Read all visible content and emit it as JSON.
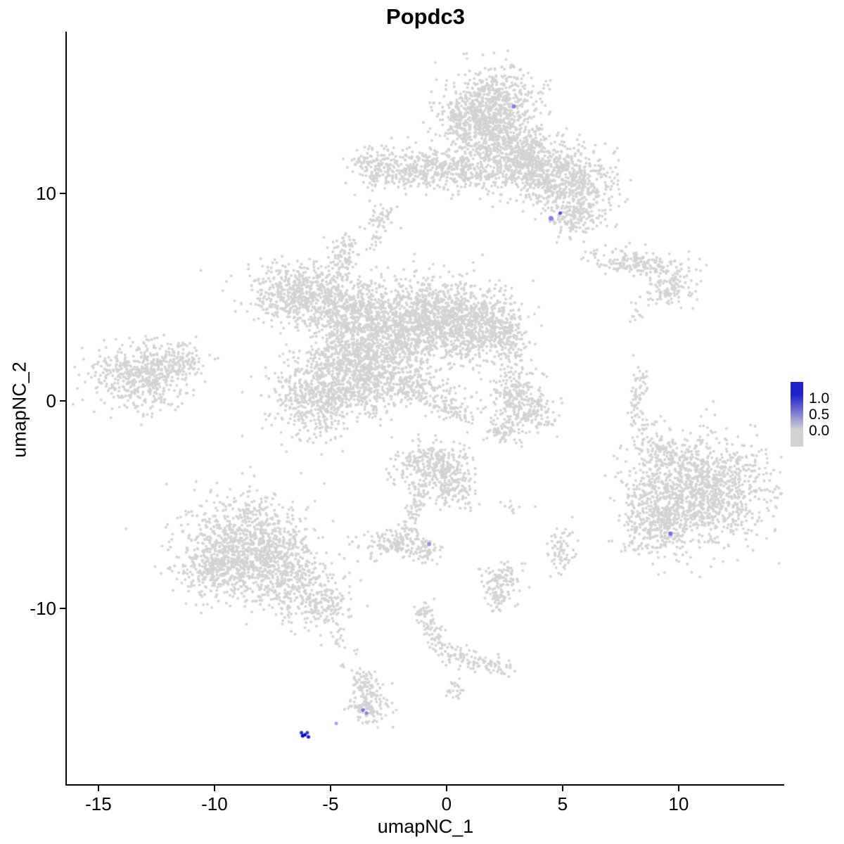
{
  "title": "Popdc3",
  "axes": {
    "x": {
      "label": "umapNC_1",
      "ticks": [
        {
          "value": -15,
          "label": "-15"
        },
        {
          "value": -10,
          "label": "-10"
        },
        {
          "value": -5,
          "label": "-5"
        },
        {
          "value": 0,
          "label": "0"
        },
        {
          "value": 5,
          "label": "5"
        },
        {
          "value": 10,
          "label": "10"
        }
      ]
    },
    "y": {
      "label": "umapNC_2",
      "ticks": [
        {
          "value": 10,
          "label": "10"
        },
        {
          "value": 0,
          "label": "0"
        },
        {
          "value": -10,
          "label": "-10"
        }
      ]
    }
  },
  "legend": {
    "labels": [
      "1.0",
      "0.5",
      "0.0"
    ],
    "color_high": "#2121CC",
    "color_low": "#D3D3D3"
  },
  "chart_data": {
    "type": "scatter",
    "title": "Popdc3",
    "xlabel": "umapNC_1",
    "ylabel": "umapNC_2",
    "xlim": [
      -16.36,
      14.55
    ],
    "ylim": [
      -18.48,
      17.8
    ],
    "grid": false,
    "legend_position": "right",
    "base_point_color": "#d3d3d3",
    "base_point_radius": 2,
    "clusters": [
      {
        "cx": 2.0,
        "cy": 14.3,
        "sx": 0.95,
        "sy": 0.85,
        "n": 650
      },
      {
        "cx": 0.9,
        "cy": 13.3,
        "sx": 0.6,
        "sy": 0.6,
        "n": 200
      },
      {
        "cx": 2.6,
        "cy": 12.4,
        "sx": 0.8,
        "sy": 0.8,
        "n": 300
      },
      {
        "cx": 3.7,
        "cy": 11.3,
        "sx": 1.2,
        "sy": 0.75,
        "n": 550
      },
      {
        "cx": 5.3,
        "cy": 10.4,
        "sx": 1.0,
        "sy": 0.7,
        "n": 420
      },
      {
        "cx": 0.6,
        "cy": 11.2,
        "sx": 1.1,
        "sy": 0.55,
        "n": 280
      },
      {
        "cx": -1.6,
        "cy": 11.1,
        "sx": 1.0,
        "sy": 0.45,
        "n": 200
      },
      {
        "cx": -3.1,
        "cy": 11.3,
        "sx": 0.55,
        "sy": 0.5,
        "n": 120
      },
      {
        "cx": 5.7,
        "cy": 8.9,
        "sx": 0.6,
        "sy": 0.5,
        "n": 150
      },
      {
        "cx": -2.8,
        "cy": 8.8,
        "sx": 0.35,
        "sy": 0.45,
        "n": 50
      },
      {
        "cx": -3.0,
        "cy": 7.7,
        "sx": 0.15,
        "sy": 0.3,
        "n": 10
      },
      {
        "cx": 8.3,
        "cy": 6.6,
        "sx": 1.15,
        "sy": 0.33,
        "n": 200,
        "rot": -8
      },
      {
        "cx": 9.6,
        "cy": 5.3,
        "sx": 0.65,
        "sy": 0.4,
        "n": 110
      },
      {
        "cx": 8.2,
        "cy": 4.1,
        "sx": 0.15,
        "sy": 0.2,
        "n": 8
      },
      {
        "cx": -6.4,
        "cy": 5.2,
        "sx": 1.05,
        "sy": 0.7,
        "n": 520
      },
      {
        "cx": -4.4,
        "cy": 7.0,
        "sx": 0.3,
        "sy": 0.55,
        "n": 90
      },
      {
        "cx": -4.3,
        "cy": 4.4,
        "sx": 0.85,
        "sy": 0.85,
        "n": 380
      },
      {
        "cx": -2.6,
        "cy": 3.1,
        "sx": 1.05,
        "sy": 1.15,
        "n": 650
      },
      {
        "cx": -0.8,
        "cy": 3.9,
        "sx": 1.2,
        "sy": 1.0,
        "n": 750
      },
      {
        "cx": 1.2,
        "cy": 3.7,
        "sx": 1.0,
        "sy": 0.9,
        "n": 560
      },
      {
        "cx": 2.5,
        "cy": 3.2,
        "sx": 0.45,
        "sy": 0.55,
        "n": 130
      },
      {
        "cx": -5.5,
        "cy": 0.2,
        "sx": 1.05,
        "sy": 0.95,
        "n": 560
      },
      {
        "cx": -4.6,
        "cy": 2.4,
        "sx": 0.75,
        "sy": 0.8,
        "n": 300
      },
      {
        "cx": -3.4,
        "cy": 1.1,
        "sx": 0.9,
        "sy": 0.9,
        "n": 380
      },
      {
        "cx": -1.4,
        "cy": 0.7,
        "sx": 0.9,
        "sy": 0.45,
        "n": 170,
        "rot": -18
      },
      {
        "cx": 0.2,
        "cy": -0.3,
        "sx": 0.6,
        "sy": 0.3,
        "n": 80,
        "rot": -25
      },
      {
        "cx": -13.2,
        "cy": 1.2,
        "sx": 1.05,
        "sy": 0.8,
        "n": 520
      },
      {
        "cx": -11.4,
        "cy": 1.9,
        "sx": 0.6,
        "sy": 0.4,
        "n": 110
      },
      {
        "cx": -10.6,
        "cy": 6.2,
        "sx": 0.05,
        "sy": 0.05,
        "n": 1
      },
      {
        "cx": 2.9,
        "cy": 0.4,
        "sx": 0.6,
        "sy": 0.6,
        "n": 180
      },
      {
        "cx": 3.6,
        "cy": -0.8,
        "sx": 0.55,
        "sy": 0.45,
        "n": 130
      },
      {
        "cx": 2.4,
        "cy": -1.4,
        "sx": 0.35,
        "sy": 0.35,
        "n": 60
      },
      {
        "cx": 2.7,
        "cy": 1.9,
        "sx": 0.3,
        "sy": 0.7,
        "n": 20
      },
      {
        "cx": 8.2,
        "cy": -0.3,
        "sx": 0.17,
        "sy": 0.85,
        "n": 70
      },
      {
        "cx": 8.5,
        "cy": 1.1,
        "sx": 0.12,
        "sy": 0.35,
        "n": 14
      },
      {
        "cx": -0.6,
        "cy": -3.1,
        "sx": 0.8,
        "sy": 0.6,
        "n": 320
      },
      {
        "cx": 0.4,
        "cy": -4.2,
        "sx": 0.45,
        "sy": 0.5,
        "n": 110
      },
      {
        "cx": -1.2,
        "cy": -4.9,
        "sx": 0.18,
        "sy": 0.5,
        "n": 40
      },
      {
        "cx": -1.6,
        "cy": -6.0,
        "sx": 0.22,
        "sy": 0.4,
        "n": 35
      },
      {
        "cx": 2.9,
        "cy": -5.1,
        "sx": 0.3,
        "sy": 0.17,
        "n": 10
      },
      {
        "cx": 11.0,
        "cy": -4.3,
        "sx": 1.5,
        "sy": 1.3,
        "n": 1250
      },
      {
        "cx": 8.9,
        "cy": -5.9,
        "sx": 0.8,
        "sy": 0.85,
        "n": 280
      },
      {
        "cx": 9.3,
        "cy": -2.7,
        "sx": 0.5,
        "sy": 0.5,
        "n": 90
      },
      {
        "cx": 8.6,
        "cy": -1.8,
        "sx": 0.35,
        "sy": 0.4,
        "n": 18
      },
      {
        "cx": -8.6,
        "cy": -6.8,
        "sx": 1.3,
        "sy": 1.1,
        "n": 820
      },
      {
        "cx": -6.9,
        "cy": -8.5,
        "sx": 1.0,
        "sy": 0.9,
        "n": 460
      },
      {
        "cx": -9.9,
        "cy": -8.1,
        "sx": 0.85,
        "sy": 0.7,
        "n": 280
      },
      {
        "cx": -5.3,
        "cy": -9.8,
        "sx": 0.6,
        "sy": 0.5,
        "n": 140
      },
      {
        "cx": -4.6,
        "cy": -11.2,
        "sx": 0.18,
        "sy": 0.6,
        "n": 18
      },
      {
        "cx": -3.9,
        "cy": -12.0,
        "sx": 0.1,
        "sy": 0.15,
        "n": 3
      },
      {
        "cx": -2.3,
        "cy": -6.9,
        "sx": 0.55,
        "sy": 0.33,
        "n": 130
      },
      {
        "cx": -0.9,
        "cy": -7.2,
        "sx": 0.4,
        "sy": 0.3,
        "n": 60
      },
      {
        "cx": 2.4,
        "cy": -8.6,
        "sx": 0.42,
        "sy": 0.42,
        "n": 90
      },
      {
        "cx": 2.2,
        "cy": -9.6,
        "sx": 0.3,
        "sy": 0.3,
        "n": 45
      },
      {
        "cx": 5.0,
        "cy": -7.2,
        "sx": 0.3,
        "sy": 0.5,
        "n": 65
      },
      {
        "cx": -0.9,
        "cy": -10.2,
        "sx": 0.25,
        "sy": 0.4,
        "n": 35
      },
      {
        "cx": -0.5,
        "cy": -11.4,
        "sx": 0.28,
        "sy": 0.5,
        "n": 45,
        "rot": 25
      },
      {
        "cx": 0.5,
        "cy": -12.3,
        "sx": 0.5,
        "sy": 0.28,
        "n": 55,
        "rot": -28
      },
      {
        "cx": 1.7,
        "cy": -12.7,
        "sx": 0.5,
        "sy": 0.22,
        "n": 45,
        "rot": -12
      },
      {
        "cx": 2.5,
        "cy": -12.9,
        "sx": 0.2,
        "sy": 0.2,
        "n": 12
      },
      {
        "cx": 0.4,
        "cy": -13.9,
        "sx": 0.2,
        "sy": 0.25,
        "n": 20
      },
      {
        "cx": -3.5,
        "cy": -13.7,
        "sx": 0.35,
        "sy": 0.5,
        "n": 80
      },
      {
        "cx": -3.4,
        "cy": -14.8,
        "sx": 0.45,
        "sy": 0.45,
        "n": 110
      },
      {
        "cx": -4.4,
        "cy": -12.7,
        "sx": 0.08,
        "sy": 0.2,
        "n": 4
      }
    ],
    "expression_points": [
      {
        "x": 2.9,
        "y": 14.2,
        "value": 0.4,
        "color": "#8b7ce7",
        "r": 3
      },
      {
        "x": 4.5,
        "y": 8.8,
        "value": 0.4,
        "color": "#8b7ce7",
        "r": 3.5
      },
      {
        "x": 4.9,
        "y": 9.05,
        "value": 0.6,
        "color": "#5b4be0",
        "r": 2.5
      },
      {
        "x": -0.75,
        "y": -6.9,
        "value": 0.3,
        "color": "#9a8ceb",
        "r": 3
      },
      {
        "x": 9.65,
        "y": -6.4,
        "value": 0.5,
        "color": "#7a6ae4",
        "r": 3
      },
      {
        "x": -3.6,
        "y": -14.9,
        "value": 0.5,
        "color": "#7a6ae4",
        "r": 2.5
      },
      {
        "x": -3.45,
        "y": -15.05,
        "value": 0.4,
        "color": "#8b7ce7",
        "r": 2.5
      },
      {
        "x": -4.75,
        "y": -15.55,
        "value": 0.3,
        "color": "#a89ced",
        "r": 2.5
      },
      {
        "x": -6.25,
        "y": -16.0,
        "value": 0.9,
        "color": "#2a2ad2",
        "r": 2.5
      },
      {
        "x": -6.1,
        "y": -16.1,
        "value": 1.0,
        "color": "#0f0fc4",
        "r": 2.5
      },
      {
        "x": -5.95,
        "y": -16.2,
        "value": 1.0,
        "color": "#1b1bcb",
        "r": 2.5
      },
      {
        "x": -6.2,
        "y": -16.15,
        "value": 1.0,
        "color": "#0a0abe",
        "r": 2.5
      },
      {
        "x": -6.0,
        "y": -16.0,
        "value": 0.85,
        "color": "#3d3dd8",
        "r": 2.5
      }
    ]
  }
}
